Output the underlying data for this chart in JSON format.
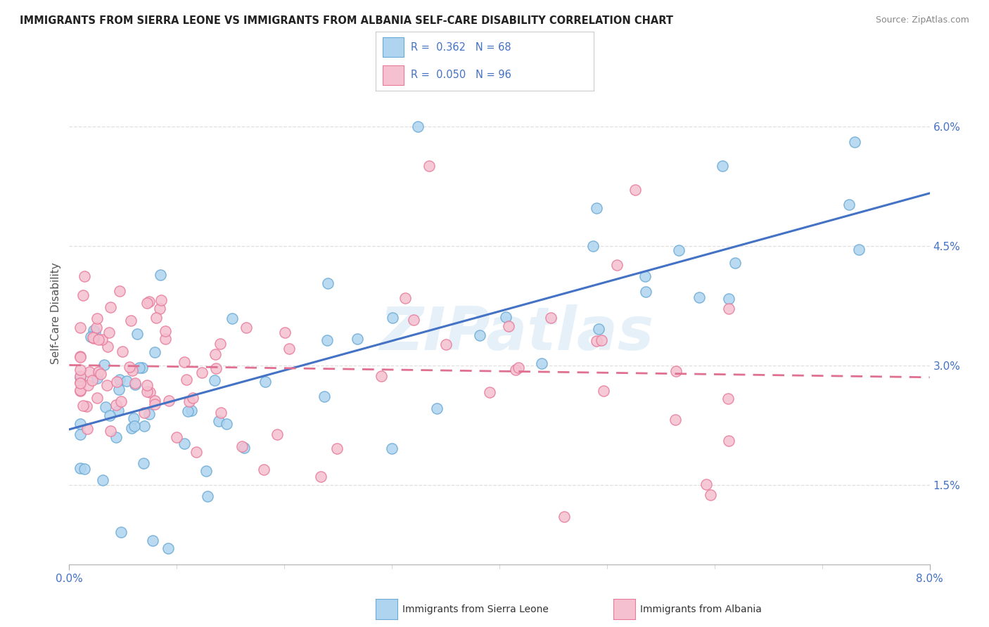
{
  "title": "IMMIGRANTS FROM SIERRA LEONE VS IMMIGRANTS FROM ALBANIA SELF-CARE DISABILITY CORRELATION CHART",
  "source": "Source: ZipAtlas.com",
  "ylabel_label": "Self-Care Disability",
  "ytick_labels": [
    "1.5%",
    "3.0%",
    "4.5%",
    "6.0%"
  ],
  "ytick_values": [
    0.015,
    0.03,
    0.045,
    0.06
  ],
  "xlim": [
    0.0,
    0.08
  ],
  "ylim": [
    0.005,
    0.068
  ],
  "series1_color": "#aed4f0",
  "series1_edge": "#6aaad4",
  "series2_color": "#f5c0d0",
  "series2_edge": "#e87a9a",
  "trendline1_color": "#4472c4",
  "trendline2_color": "#e07090",
  "trendline2_dash": [
    6,
    4
  ],
  "watermark_text": "ZIPatlas",
  "watermark_color": "#c8dff0",
  "background_color": "#ffffff",
  "grid_color": "#d8d8d8",
  "legend1_text": "R =  0.362   N = 68",
  "legend2_text": "R =  0.050   N = 96",
  "bottom_label1": "Immigrants from Sierra Leone",
  "bottom_label2": "Immigrants from Albania",
  "title_color": "#222222",
  "source_color": "#888888",
  "axis_color": "#4472c4",
  "tick_color": "#888888"
}
